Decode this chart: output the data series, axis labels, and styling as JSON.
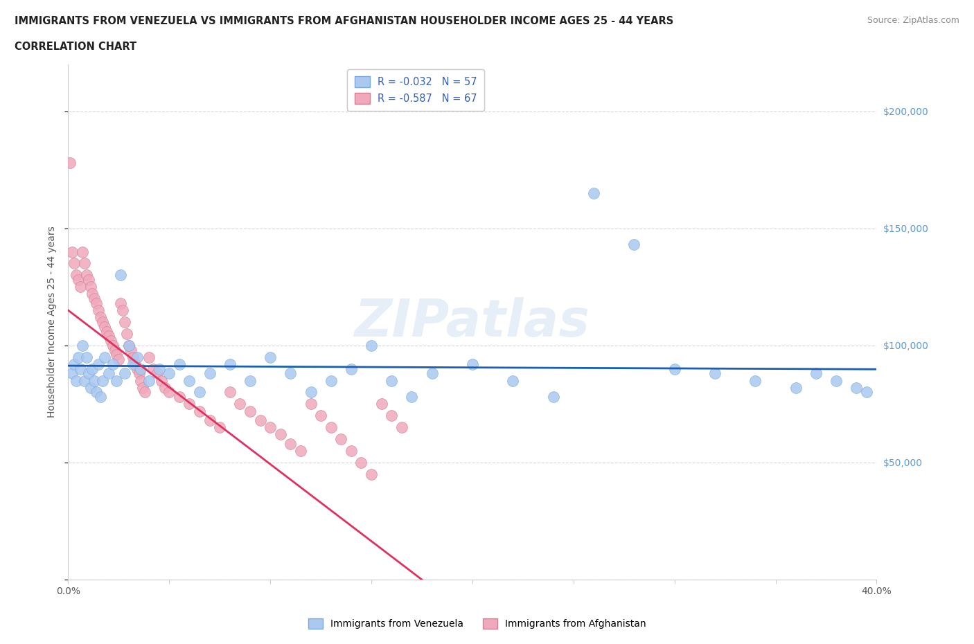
{
  "title_line1": "IMMIGRANTS FROM VENEZUELA VS IMMIGRANTS FROM AFGHANISTAN HOUSEHOLDER INCOME AGES 25 - 44 YEARS",
  "title_line2": "CORRELATION CHART",
  "source_text": "Source: ZipAtlas.com",
  "ylabel": "Householder Income Ages 25 - 44 years",
  "xlim": [
    0.0,
    0.4
  ],
  "ylim": [
    0,
    220000
  ],
  "xticks": [
    0.0,
    0.05,
    0.1,
    0.15,
    0.2,
    0.25,
    0.3,
    0.35,
    0.4
  ],
  "ytick_positions": [
    0,
    50000,
    100000,
    150000,
    200000
  ],
  "ytick_labels": [
    "",
    "$50,000",
    "$100,000",
    "$150,000",
    "$200,000"
  ],
  "legend1_label": "R = -0.032   N = 57",
  "legend2_label": "R = -0.587   N = 67",
  "legend_bottom_label1": "Immigrants from Venezuela",
  "legend_bottom_label2": "Immigrants from Afghanistan",
  "venezuela_color": "#aac8f0",
  "afghanistan_color": "#f0a8bc",
  "venezuela_line_color": "#1a5fb4",
  "afghanistan_line_color": "#e03060",
  "watermark": "ZIPatlas",
  "background_color": "#ffffff",
  "grid_color": "#cccccc",
  "venezuela_x": [
    0.002,
    0.003,
    0.004,
    0.005,
    0.006,
    0.007,
    0.008,
    0.009,
    0.01,
    0.011,
    0.012,
    0.013,
    0.014,
    0.015,
    0.016,
    0.017,
    0.018,
    0.02,
    0.022,
    0.024,
    0.026,
    0.028,
    0.03,
    0.032,
    0.034,
    0.036,
    0.04,
    0.045,
    0.05,
    0.055,
    0.06,
    0.065,
    0.07,
    0.08,
    0.09,
    0.1,
    0.11,
    0.12,
    0.13,
    0.14,
    0.15,
    0.16,
    0.17,
    0.18,
    0.2,
    0.22,
    0.24,
    0.26,
    0.28,
    0.3,
    0.32,
    0.34,
    0.36,
    0.37,
    0.38,
    0.39,
    0.395
  ],
  "venezuela_y": [
    88000,
    92000,
    85000,
    95000,
    90000,
    100000,
    85000,
    95000,
    88000,
    82000,
    90000,
    85000,
    80000,
    92000,
    78000,
    85000,
    95000,
    88000,
    92000,
    85000,
    130000,
    88000,
    100000,
    92000,
    95000,
    90000,
    85000,
    90000,
    88000,
    92000,
    85000,
    80000,
    88000,
    92000,
    85000,
    95000,
    88000,
    80000,
    85000,
    90000,
    100000,
    85000,
    78000,
    88000,
    92000,
    85000,
    78000,
    165000,
    143000,
    90000,
    88000,
    85000,
    82000,
    88000,
    85000,
    82000,
    80000
  ],
  "afghanistan_x": [
    0.001,
    0.002,
    0.003,
    0.004,
    0.005,
    0.006,
    0.007,
    0.008,
    0.009,
    0.01,
    0.011,
    0.012,
    0.013,
    0.014,
    0.015,
    0.016,
    0.017,
    0.018,
    0.019,
    0.02,
    0.021,
    0.022,
    0.023,
    0.024,
    0.025,
    0.026,
    0.027,
    0.028,
    0.029,
    0.03,
    0.031,
    0.032,
    0.033,
    0.034,
    0.035,
    0.036,
    0.037,
    0.038,
    0.04,
    0.042,
    0.044,
    0.046,
    0.048,
    0.05,
    0.055,
    0.06,
    0.065,
    0.07,
    0.075,
    0.08,
    0.085,
    0.09,
    0.095,
    0.1,
    0.105,
    0.11,
    0.115,
    0.12,
    0.125,
    0.13,
    0.135,
    0.14,
    0.145,
    0.15,
    0.155,
    0.16,
    0.165
  ],
  "afghanistan_y": [
    178000,
    140000,
    135000,
    130000,
    128000,
    125000,
    140000,
    135000,
    130000,
    128000,
    125000,
    122000,
    120000,
    118000,
    115000,
    112000,
    110000,
    108000,
    106000,
    104000,
    102000,
    100000,
    98000,
    96000,
    94000,
    118000,
    115000,
    110000,
    105000,
    100000,
    98000,
    95000,
    92000,
    90000,
    88000,
    85000,
    82000,
    80000,
    95000,
    90000,
    88000,
    85000,
    82000,
    80000,
    78000,
    75000,
    72000,
    68000,
    65000,
    80000,
    75000,
    72000,
    68000,
    65000,
    62000,
    58000,
    55000,
    75000,
    70000,
    65000,
    60000,
    55000,
    50000,
    45000,
    75000,
    70000,
    65000
  ]
}
